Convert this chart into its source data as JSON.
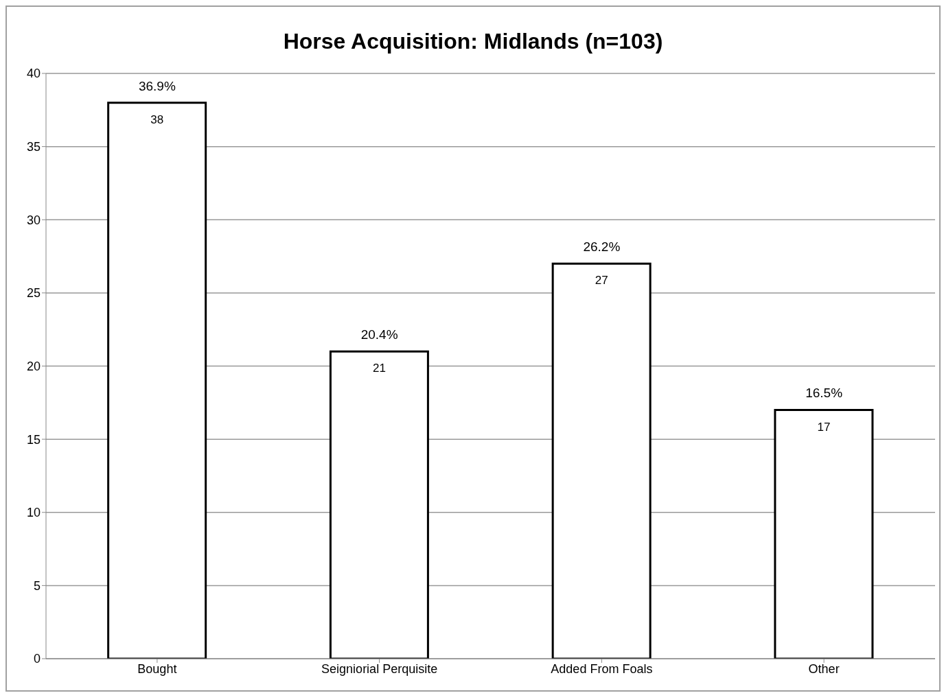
{
  "chart_data": {
    "type": "bar",
    "title": "Horse Acquisition: Midlands (n=103)",
    "categories": [
      "Bought",
      "Seigniorial Perquisite",
      "Added From Foals",
      "Other"
    ],
    "values": [
      38,
      21,
      27,
      17
    ],
    "color": "#ffffff",
    "ylim": [
      0,
      40
    ],
    "yticks": [
      0,
      5,
      10,
      15,
      20,
      25,
      30,
      35,
      40
    ],
    "grid": "y",
    "data_labels": true,
    "annotations": [
      {
        "text": "36.9%",
        "x": "Bought",
        "y": 38
      },
      {
        "text": "20.4%",
        "x": "Seigniorial Perquisite",
        "y": 21
      },
      {
        "text": "26.2%",
        "x": "Added From Foals",
        "y": 27
      },
      {
        "text": "16.5%",
        "x": "Other",
        "y": 17
      }
    ]
  }
}
